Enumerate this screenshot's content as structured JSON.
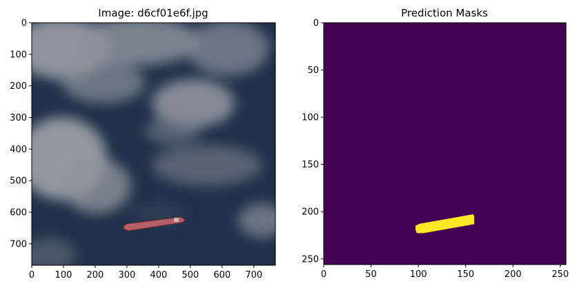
{
  "chart_data": [
    {
      "type": "image",
      "title": "Image: d6cf01e6f.jpg",
      "xlim": [
        0,
        768
      ],
      "ylim": [
        768,
        0
      ],
      "x_ticks": [
        0,
        100,
        200,
        300,
        400,
        500,
        600,
        700
      ],
      "y_ticks": [
        0,
        100,
        200,
        300,
        400,
        500,
        600,
        700
      ],
      "content": "satellite image of ocean with clouds and a ship",
      "ship": {
        "x_start": 290,
        "x_end": 470,
        "y_start": 660,
        "y_end": 625,
        "color": "#b25f66"
      }
    },
    {
      "type": "heatmap",
      "title": "Prediction Masks",
      "xlim": [
        0,
        256
      ],
      "ylim": [
        256,
        0
      ],
      "x_ticks": [
        0,
        50,
        100,
        150,
        200,
        250
      ],
      "y_ticks": [
        0,
        50,
        100,
        150,
        200,
        250
      ],
      "background_value": 0,
      "mask_value": 1,
      "colors": {
        "background": "#440154",
        "mask": "#fde725"
      },
      "mask": {
        "x_start": 97,
        "x_end": 159,
        "y_start": 218,
        "y_end": 208
      }
    }
  ]
}
